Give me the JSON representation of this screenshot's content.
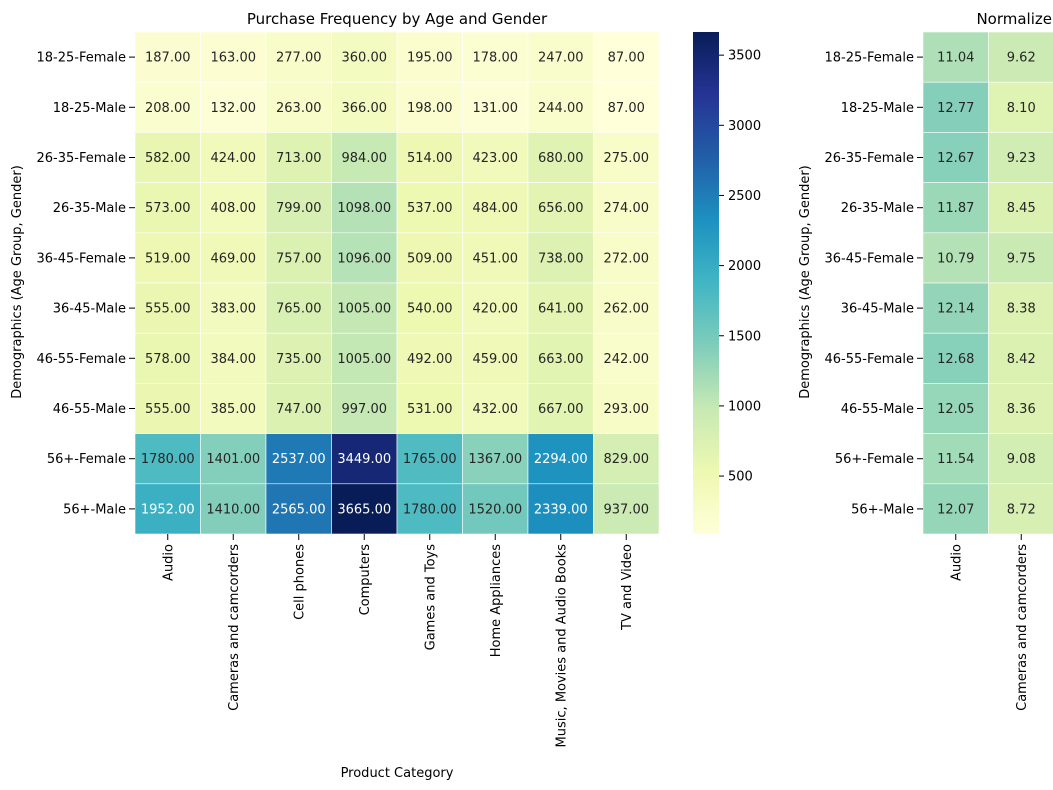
{
  "chart_data": [
    {
      "type": "heatmap",
      "title": "Purchase Frequency by Age and Gender",
      "xlabel": "Product Category",
      "ylabel": "Demographics (Age Group, Gender)",
      "colormap": "YlGnBu",
      "value_format": "2 decimals",
      "rows": [
        "18-25-Female",
        "18-25-Male",
        "26-35-Female",
        "26-35-Male",
        "36-45-Female",
        "36-45-Male",
        "46-55-Female",
        "46-55-Male",
        "56+-Female",
        "56+-Male"
      ],
      "columns": [
        "Audio",
        "Cameras and camcorders",
        "Cell phones",
        "Computers",
        "Games and Toys",
        "Home Appliances",
        "Music, Movies and Audio Books",
        "TV and Video"
      ],
      "values": [
        [
          187,
          163,
          277,
          360,
          195,
          178,
          247,
          87
        ],
        [
          208,
          132,
          263,
          366,
          198,
          131,
          244,
          87
        ],
        [
          582,
          424,
          713,
          984,
          514,
          423,
          680,
          275
        ],
        [
          573,
          408,
          799,
          1098,
          537,
          484,
          656,
          274
        ],
        [
          519,
          469,
          757,
          1096,
          509,
          451,
          738,
          272
        ],
        [
          555,
          383,
          765,
          1005,
          540,
          420,
          641,
          262
        ],
        [
          578,
          384,
          735,
          1005,
          492,
          459,
          663,
          242
        ],
        [
          555,
          385,
          747,
          997,
          531,
          432,
          667,
          293
        ],
        [
          1780,
          1401,
          2537,
          3449,
          1765,
          1367,
          2294,
          829
        ],
        [
          1952,
          1410,
          2565,
          3665,
          1780,
          1520,
          2339,
          937
        ]
      ],
      "colorbar": {
        "min": 87,
        "max": 3665,
        "ticks": [
          500,
          1000,
          1500,
          2000,
          2500,
          3000,
          3500
        ]
      }
    },
    {
      "type": "heatmap",
      "title": "Normalize",
      "xlabel": "",
      "ylabel": "Demographics (Age Group, Gender)",
      "colormap": "YlGnBu",
      "value_format": "2 decimals",
      "rows": [
        "18-25-Female",
        "18-25-Male",
        "26-35-Female",
        "26-35-Male",
        "36-45-Female",
        "36-45-Male",
        "46-55-Female",
        "46-55-Male",
        "56+-Female",
        "56+-Male"
      ],
      "columns": [
        "Audio",
        "Cameras and camcorders"
      ],
      "values": [
        [
          11.04,
          9.62
        ],
        [
          12.77,
          8.1
        ],
        [
          12.67,
          9.23
        ],
        [
          11.87,
          8.45
        ],
        [
          10.79,
          9.75
        ],
        [
          12.14,
          8.38
        ],
        [
          12.68,
          8.42
        ],
        [
          12.05,
          8.36
        ],
        [
          11.54,
          9.08
        ],
        [
          12.07,
          8.72
        ]
      ],
      "color_range": [
        4.0,
        28.0
      ]
    }
  ]
}
